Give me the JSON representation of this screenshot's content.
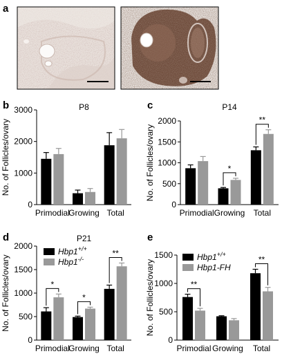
{
  "panels": {
    "a": {
      "letter": "a"
    }
  },
  "colors": {
    "wt": "#000000",
    "mut": "#999999",
    "micro_left_bg": "#e6ddd8",
    "micro_right_bg": "#f1eeec",
    "tissue_dark": "#6e4a3a"
  },
  "chart_data": [
    {
      "id": "b",
      "letter": "b",
      "type": "bar",
      "title": "P8",
      "ylabel": "No. of Follicles/ovary",
      "categories": [
        "Primodial",
        "Growing",
        "Total"
      ],
      "ylim": [
        0,
        3000
      ],
      "yticks": [
        0,
        1000,
        2000,
        3000
      ],
      "series": [
        {
          "key": "wt",
          "values": [
            1450,
            360,
            1880
          ],
          "errors": [
            200,
            100,
            400
          ]
        },
        {
          "key": "mut",
          "values": [
            1600,
            400,
            2100
          ],
          "errors": [
            180,
            110,
            280
          ]
        }
      ],
      "legend": [],
      "significance": []
    },
    {
      "id": "c",
      "letter": "c",
      "type": "bar",
      "title": "P14",
      "ylabel": "No. of Follicles/ovary",
      "categories": [
        "Primodial",
        "Growing",
        "Total"
      ],
      "ylim": [
        0,
        2000
      ],
      "yticks": [
        0,
        500,
        1000,
        1500,
        2000
      ],
      "series": [
        {
          "key": "wt",
          "values": [
            870,
            390,
            1300
          ],
          "errors": [
            80,
            20,
            80
          ]
        },
        {
          "key": "mut",
          "values": [
            1040,
            590,
            1690
          ],
          "errors": [
            110,
            40,
            100
          ]
        }
      ],
      "legend": [],
      "significance": [
        {
          "category": 1,
          "label": "*"
        },
        {
          "category": 2,
          "label": "**"
        }
      ]
    },
    {
      "id": "d",
      "letter": "d",
      "type": "bar",
      "title": "P21",
      "ylabel": "No. of Follicles/ovary",
      "categories": [
        "Primodial",
        "Growing",
        "Total"
      ],
      "ylim": [
        0,
        2000
      ],
      "yticks": [
        0,
        500,
        1000,
        1500,
        2000
      ],
      "series": [
        {
          "key": "wt",
          "values": [
            610,
            490,
            1090
          ],
          "errors": [
            80,
            20,
            80
          ]
        },
        {
          "key": "mut",
          "values": [
            910,
            670,
            1570
          ],
          "errors": [
            70,
            30,
            70
          ]
        }
      ],
      "legend": [
        {
          "key": "wt",
          "base": "Hbp1",
          "sup": "+/+"
        },
        {
          "key": "mut",
          "base": "Hbp1",
          "sup": "-/-"
        }
      ],
      "significance": [
        {
          "category": 0,
          "label": "*"
        },
        {
          "category": 1,
          "label": "*"
        },
        {
          "category": 2,
          "label": "**"
        }
      ]
    },
    {
      "id": "e",
      "letter": "e",
      "type": "bar",
      "title": "",
      "ylabel": "No. of Follicles/ovary",
      "categories": [
        "Primodial",
        "Growing",
        "Total"
      ],
      "ylim": [
        0,
        1500
      ],
      "yticks": [
        0,
        500,
        1000,
        1500
      ],
      "series": [
        {
          "key": "wt",
          "values": [
            760,
            420,
            1180
          ],
          "errors": [
            50,
            10,
            70
          ]
        },
        {
          "key": "mut",
          "values": [
            520,
            350,
            860
          ],
          "errors": [
            40,
            30,
            70
          ]
        }
      ],
      "legend": [
        {
          "key": "wt",
          "base": "Hbp1",
          "sup": "+/+"
        },
        {
          "key": "mut",
          "base": "Hbp1-FH",
          "sup": ""
        }
      ],
      "significance": [
        {
          "category": 0,
          "label": "**"
        },
        {
          "category": 2,
          "label": "**"
        }
      ]
    }
  ]
}
